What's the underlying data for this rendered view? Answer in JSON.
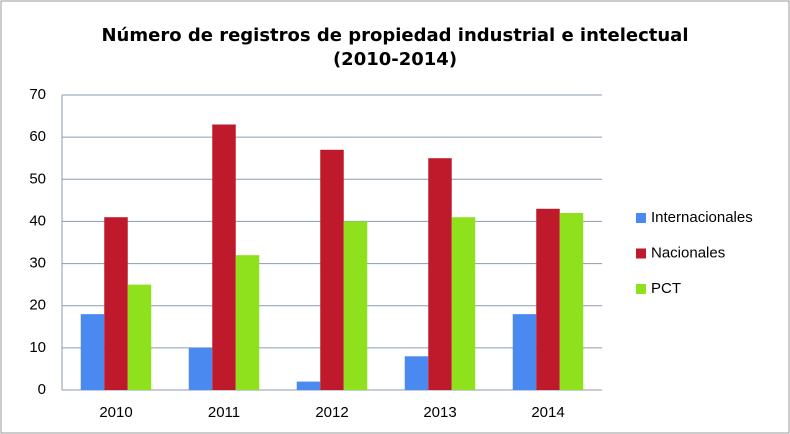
{
  "chart_data": {
    "type": "bar",
    "title": "Número de registros de propiedad industrial e intelectual (2010-2014)",
    "categories": [
      "2010",
      "2011",
      "2012",
      "2013",
      "2014"
    ],
    "series": [
      {
        "name": "Internacionales",
        "color": "#4a89ef",
        "values": [
          18,
          10,
          2,
          8,
          18
        ]
      },
      {
        "name": "Nacionales",
        "color": "#be1a2b",
        "values": [
          41,
          63,
          57,
          55,
          43
        ]
      },
      {
        "name": "PCT",
        "color": "#8ee11c",
        "values": [
          25,
          32,
          40,
          41,
          42
        ]
      }
    ],
    "ylim": [
      0,
      70
    ],
    "yticks": [
      0,
      10,
      20,
      30,
      40,
      50,
      60,
      70
    ],
    "grid": true,
    "legend": "right"
  }
}
